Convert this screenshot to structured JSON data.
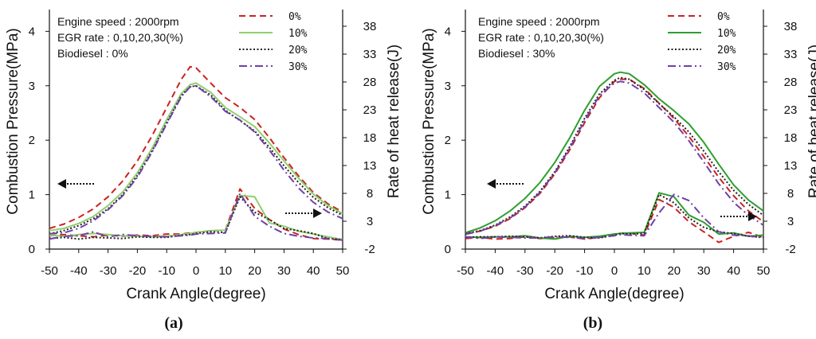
{
  "chart_data": [
    {
      "type": "line",
      "panel_label": "(a)",
      "xlabel": "Crank Angle(degree)",
      "ylabel": "Combustion Pressure(MPa)",
      "y2label": "Rate of heat release(J)",
      "xlim": [
        -50,
        50
      ],
      "ylim": [
        0,
        4.4
      ],
      "y2lim": [
        -2,
        41
      ],
      "xticks": [
        "-50",
        "-40",
        "-30",
        "-20",
        "-10",
        "0",
        "10",
        "20",
        "30",
        "40",
        "50"
      ],
      "yticks": [
        "0",
        "1",
        "2",
        "3",
        "4"
      ],
      "y2ticks": [
        "-2",
        "3",
        "8",
        "13",
        "18",
        "23",
        "28",
        "33",
        "38"
      ],
      "annotations": [
        "Engine speed : 2000rpm",
        "EGR rate : 0,10,20,30(%)",
        "Biodiesel : 0%"
      ],
      "legend_position": "top-right",
      "x": [
        -50,
        -45,
        -40,
        -35,
        -30,
        -25,
        -20,
        -15,
        -10,
        -5,
        -2,
        0,
        5,
        10,
        15,
        20,
        25,
        30,
        35,
        40,
        45,
        50
      ],
      "series": [
        {
          "name": "0%",
          "color": "#cc2222",
          "dash": "dashed",
          "pressure": [
            0.38,
            0.46,
            0.58,
            0.74,
            0.96,
            1.25,
            1.62,
            2.08,
            2.6,
            3.12,
            3.35,
            3.33,
            3.05,
            2.78,
            2.6,
            2.38,
            2.05,
            1.68,
            1.34,
            1.04,
            0.83,
            0.68
          ],
          "heat_release": [
            0.4,
            0.6,
            0.4,
            0.2,
            0.5,
            0.3,
            0.5,
            0.4,
            0.7,
            0.7,
            0.9,
            1,
            1.3,
            1.4,
            8.8,
            5.3,
            3.3,
            1.6,
            0.6,
            -0.1,
            -0.2,
            -0.4
          ]
        },
        {
          "name": "10%",
          "color": "#8fd070",
          "dash": "solid",
          "pressure": [
            0.34,
            0.38,
            0.47,
            0.6,
            0.8,
            1.05,
            1.4,
            1.85,
            2.38,
            2.86,
            3.02,
            3.05,
            2.88,
            2.6,
            2.43,
            2.25,
            1.95,
            1.62,
            1.3,
            1.01,
            0.8,
            0.65
          ],
          "heat_release": [
            0.5,
            0.3,
            0.6,
            0.8,
            0.6,
            0.4,
            0.3,
            0.2,
            0.3,
            0.6,
            0.8,
            1,
            1.3,
            1.4,
            7.6,
            7.4,
            2.7,
            2.1,
            1.2,
            0.7,
            0.2,
            -0.3
          ]
        },
        {
          "name": "20%",
          "color": "#222222",
          "dash": "dotted",
          "pressure": [
            0.28,
            0.34,
            0.43,
            0.56,
            0.74,
            1,
            1.35,
            1.8,
            2.32,
            2.82,
            2.98,
            3,
            2.83,
            2.55,
            2.36,
            2.17,
            1.87,
            1.53,
            1.22,
            0.95,
            0.76,
            0.62
          ],
          "heat_release": [
            -0.1,
            0.1,
            -0.2,
            0.1,
            0,
            -0.1,
            0.2,
            0.1,
            0.1,
            0.5,
            0.6,
            0.8,
            1.1,
            1,
            7.4,
            4.6,
            3.3,
            1.7,
            1.3,
            0.8,
            -0.1,
            -0.3
          ]
        },
        {
          "name": "30%",
          "color": "#7040a8",
          "dash": "dashdot",
          "pressure": [
            0.28,
            0.3,
            0.38,
            0.52,
            0.72,
            0.98,
            1.32,
            1.78,
            2.3,
            2.8,
            2.98,
            3,
            2.8,
            2.53,
            2.37,
            2.15,
            1.82,
            1.45,
            1.12,
            0.86,
            0.68,
            0.56
          ],
          "heat_release": [
            -0.2,
            0.3,
            0.4,
            1.1,
            0.2,
            0.6,
            0.4,
            0.3,
            0.2,
            0.4,
            0.5,
            0.7,
            0.8,
            0.9,
            8,
            3.9,
            2.1,
            0.8,
            0.3,
            0,
            -0.1,
            -0.4
          ]
        }
      ]
    },
    {
      "type": "line",
      "panel_label": "(b)",
      "xlabel": "Crank Angle(degree)",
      "ylabel": "Combustion Pressure(MPa)",
      "y2label": "Rate of heat release(J)",
      "xlim": [
        -50,
        50
      ],
      "ylim": [
        0,
        4.4
      ],
      "y2lim": [
        -2,
        41
      ],
      "xticks": [
        "-50",
        "-40",
        "-30",
        "-20",
        "-10",
        "0",
        "10",
        "20",
        "30",
        "40",
        "50"
      ],
      "yticks": [
        "0",
        "1",
        "2",
        "3",
        "4"
      ],
      "y2ticks": [
        "-2",
        "3",
        "8",
        "13",
        "18",
        "23",
        "28",
        "33",
        "38"
      ],
      "annotations": [
        "Engine speed : 2000rpm",
        "EGR rate : 0,10,20,30(%)",
        "Biodiesel : 30%"
      ],
      "legend_position": "top-right",
      "x": [
        -50,
        -45,
        -40,
        -35,
        -30,
        -25,
        -20,
        -15,
        -10,
        -5,
        0,
        2,
        5,
        10,
        15,
        20,
        25,
        30,
        35,
        40,
        45,
        50
      ],
      "series": [
        {
          "name": "0%",
          "color": "#cc2222",
          "dash": "dashed",
          "pressure": [
            0.28,
            0.33,
            0.42,
            0.56,
            0.76,
            1.02,
            1.38,
            1.82,
            2.32,
            2.78,
            3.08,
            3.12,
            3.12,
            2.95,
            2.68,
            2.4,
            2.07,
            1.7,
            1.32,
            0.98,
            0.7,
            0.5
          ],
          "heat_release": [
            -0.1,
            0.1,
            -0.2,
            -0.1,
            0.2,
            -0.1,
            0.1,
            0.2,
            -0.2,
            0.1,
            0.7,
            0.8,
            0.9,
            0.5,
            6.9,
            5.5,
            2.9,
            1.1,
            -0.8,
            0.3,
            1,
            0.1
          ]
        },
        {
          "name": "10%",
          "color": "#2e9e2e",
          "dash": "solid",
          "pressure": [
            0.3,
            0.39,
            0.52,
            0.7,
            0.93,
            1.22,
            1.59,
            2.04,
            2.55,
            2.99,
            3.22,
            3.25,
            3.22,
            3.02,
            2.76,
            2.54,
            2.3,
            1.96,
            1.56,
            1.18,
            0.9,
            0.7
          ],
          "heat_release": [
            0.2,
            0.1,
            0.2,
            0.2,
            0.4,
            0,
            -0.2,
            0.3,
            0.1,
            0.3,
            0.7,
            0.8,
            0.9,
            1,
            8.1,
            7.4,
            4.1,
            2.8,
            0.7,
            0.9,
            0.3,
            0.5
          ]
        },
        {
          "name": "20%",
          "color": "#222222",
          "dash": "dotted",
          "pressure": [
            0.28,
            0.34,
            0.44,
            0.59,
            0.79,
            1.06,
            1.42,
            1.88,
            2.4,
            2.85,
            3.1,
            3.15,
            3.12,
            2.93,
            2.67,
            2.43,
            2.15,
            1.8,
            1.42,
            1.08,
            0.82,
            0.62
          ],
          "heat_release": [
            0.1,
            0.2,
            0.2,
            0.3,
            0.2,
            0,
            0.3,
            0.4,
            0.1,
            0,
            0.5,
            0.8,
            0.7,
            0.8,
            7.8,
            6.3,
            3.6,
            1.9,
            1.1,
            0.8,
            0.3,
            0.1
          ]
        },
        {
          "name": "30%",
          "color": "#7040a8",
          "dash": "dashdot",
          "pressure": [
            0.27,
            0.33,
            0.43,
            0.57,
            0.77,
            1.04,
            1.4,
            1.85,
            2.36,
            2.82,
            3.05,
            3.08,
            3.05,
            2.87,
            2.6,
            2.33,
            1.99,
            1.6,
            1.2,
            0.86,
            0.62,
            0.44
          ],
          "heat_release": [
            0.2,
            -0.1,
            0.2,
            0.1,
            0,
            0,
            0.2,
            0.1,
            -0.1,
            0.1,
            0.4,
            0.6,
            0.5,
            0.4,
            4.5,
            7.8,
            6.7,
            3.6,
            1.1,
            0.5,
            0.4,
            0
          ]
        }
      ]
    }
  ]
}
